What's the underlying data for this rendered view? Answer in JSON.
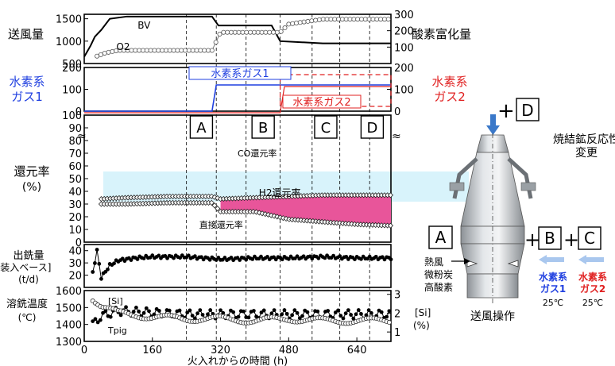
{
  "chart_data": [
    {
      "type": "line",
      "panel": "blast",
      "ylabel": "送風量",
      "ylabel_right": "酸素富化量",
      "ylim": [
        500,
        1600
      ],
      "yticks": [
        "500",
        "1000",
        "1500"
      ],
      "ylim_right": [
        0,
        300
      ],
      "yticks_right": [
        "100",
        "200",
        "300"
      ],
      "series": [
        {
          "name": "BV",
          "x": [
            0,
            15,
            25,
            40,
            60,
            100,
            160,
            240,
            300,
            315,
            400,
            440,
            460,
            560,
            640,
            720
          ],
          "y": [
            650,
            900,
            1100,
            1250,
            1500,
            1550,
            1550,
            1550,
            1550,
            1350,
            1350,
            1350,
            1000,
            950,
            950,
            950
          ]
        },
        {
          "name": "O2",
          "x": [
            30,
            50,
            60,
            80,
            120,
            160,
            240,
            300,
            320,
            400,
            460,
            480,
            560,
            640,
            720
          ],
          "y": [
            45,
            65,
            70,
            80,
            80,
            80,
            80,
            80,
            190,
            190,
            190,
            240,
            270,
            270,
            270
          ]
        }
      ],
      "annotations": [
        "BV",
        "O2"
      ]
    },
    {
      "type": "line",
      "panel": "hydrogen",
      "ylabel": "水素系ガス1",
      "ylabel_right": "水素系ガス2",
      "ylim": [
        0,
        200
      ],
      "yticks": [
        "0",
        "100",
        "200"
      ],
      "yticks_right": [
        "0",
        "100",
        "200"
      ],
      "series": [
        {
          "name": "水素系ガス1",
          "x": [
            0,
            300,
            310,
            720
          ],
          "y": [
            0,
            0,
            120,
            120
          ]
        },
        {
          "name": "水素系ガス2",
          "x": [
            0,
            460,
            470,
            720
          ],
          "y": [
            0,
            0,
            120,
            120
          ]
        }
      ],
      "annotations": [
        "水素系ガス1",
        "水素系ガス2"
      ]
    },
    {
      "type": "area",
      "panel": "reduction",
      "ylabel": "還元率",
      "yunit": "(%)",
      "ylim": [
        0,
        100
      ],
      "yticks": [
        "0",
        "10",
        "20",
        "30",
        "40",
        "50",
        "60",
        "70",
        "80",
        "90",
        "100"
      ],
      "series": [
        {
          "name": "CO還元率",
          "x": [
            40,
            100,
            200,
            300,
            320,
            400,
            480,
            560,
            640,
            720
          ],
          "y": [
            34,
            35,
            36,
            36,
            34,
            35,
            36,
            37,
            37,
            37
          ]
        },
        {
          "name": "直接還元率",
          "x": [
            40,
            100,
            200,
            300,
            320,
            400,
            480,
            560,
            640,
            720
          ],
          "y": [
            30,
            30,
            31,
            31,
            24,
            24,
            18,
            16,
            14,
            13
          ]
        }
      ],
      "annotations": [
        "CO還元率",
        "H2還元率",
        "直接還元率"
      ]
    },
    {
      "type": "scatter",
      "panel": "output",
      "ylabel": "出銑量",
      "ylabel2": "[装入ベース]",
      "yunit": "(t/d)",
      "ylim": [
        10,
        45
      ],
      "yticks": [
        "20",
        "30",
        "40"
      ],
      "series": [
        {
          "name": "出銑量",
          "x": [
            20,
            30,
            40,
            60,
            80,
            120,
            160,
            240,
            320,
            400,
            480,
            560,
            640,
            720
          ],
          "y": [
            22,
            40,
            18,
            28,
            32,
            34,
            35,
            35,
            33,
            34,
            34,
            35,
            34,
            34
          ]
        }
      ]
    },
    {
      "type": "scatter",
      "panel": "hotmetal",
      "ylabel": "溶銑温度",
      "yunit": "(℃)",
      "ylim": [
        1300,
        1600
      ],
      "yticks": [
        "1300",
        "1400",
        "1500",
        "1600"
      ],
      "ylabel_right": "[Si]",
      "yunit_right": "(%)",
      "yticks_right": [
        "1",
        "2",
        "3"
      ],
      "xlabel": "火入れからの時間 (h)",
      "xlim": [
        0,
        720
      ],
      "xticks": [
        "0",
        "160",
        "320",
        "480",
        "640"
      ],
      "series": [
        {
          "name": "Tpig",
          "x": [
            20,
            40,
            80,
            160,
            240,
            320,
            400,
            480,
            560,
            640,
            720
          ],
          "y": [
            1400,
            1450,
            1480,
            1470,
            1460,
            1460,
            1460,
            1460,
            1460,
            1460,
            1460
          ]
        },
        {
          "name": "[Si]",
          "x": [
            20,
            40,
            80,
            160,
            240,
            320,
            400,
            480,
            560,
            640,
            720
          ],
          "y": [
            2.8,
            2.4,
            2.0,
            1.8,
            1.7,
            1.7,
            1.6,
            1.7,
            1.6,
            1.6,
            1.6
          ]
        }
      ],
      "annotations": [
        "[Si]",
        "Tpig"
      ]
    }
  ],
  "phase_markers": [
    "A",
    "B",
    "C",
    "D"
  ],
  "furnace_diagram": {
    "plus_d": "+",
    "d_label": "D",
    "sinter_text_line1": "焼結鉱反応性",
    "sinter_text_line2": "変更",
    "a_label": "A",
    "b_label": "B",
    "c_label": "C",
    "plus1": "+",
    "plus2": "+",
    "tuyere_items": [
      "熱風",
      "微粉炭",
      "高酸素"
    ],
    "gas1_line1": "水素系",
    "gas1_line2": "ガス1",
    "gas1_temp": "25℃",
    "gas2_line1": "水素系",
    "gas2_line2": "ガス2",
    "gas2_temp": "25℃",
    "caption": "送風操作"
  },
  "colors": {
    "blue": "#1f3fe0",
    "red": "#e02020",
    "pink": "#e8559a",
    "cyan_band": "#d8f3fb"
  }
}
